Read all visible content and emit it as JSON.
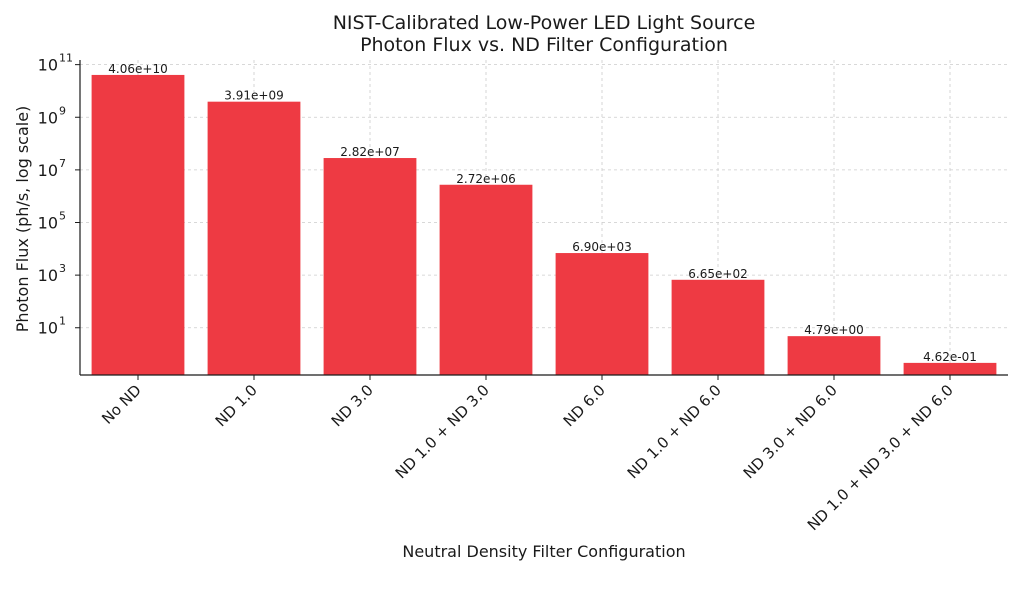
{
  "chart_data": {
    "type": "bar",
    "title": [
      "NIST-Calibrated Low-Power LED Light Source",
      "Photon Flux vs. ND Filter Configuration"
    ],
    "xlabel": "Neutral Density Filter Configuration",
    "ylabel": "Photon Flux (ph/s, log scale)",
    "yscale": "log",
    "ylim": [
      0.16,
      150000000000
    ],
    "grid": true,
    "bar_color": "#ee3a43",
    "categories": [
      "No ND",
      "ND 1.0",
      "ND 3.0",
      "ND 1.0 + ND 3.0",
      "ND 6.0",
      "ND 1.0 + ND 6.0",
      "ND 3.0 + ND 6.0",
      "ND 1.0 + ND 3.0 + ND 6.0"
    ],
    "values": [
      40600000000,
      3910000000,
      28200000,
      2720000,
      6900,
      665,
      4.79,
      0.462
    ],
    "data_labels": [
      "4.06e+10",
      "3.91e+09",
      "2.82e+07",
      "2.72e+06",
      "6.90e+03",
      "6.65e+02",
      "4.79e+00",
      "4.62e-01"
    ],
    "yticks": [
      {
        "base": "10",
        "exp": "1",
        "value": 10
      },
      {
        "base": "10",
        "exp": "3",
        "value": 1000
      },
      {
        "base": "10",
        "exp": "5",
        "value": 100000
      },
      {
        "base": "10",
        "exp": "7",
        "value": 10000000
      },
      {
        "base": "10",
        "exp": "9",
        "value": 1000000000
      },
      {
        "base": "10",
        "exp": "11",
        "value": 100000000000
      }
    ]
  }
}
